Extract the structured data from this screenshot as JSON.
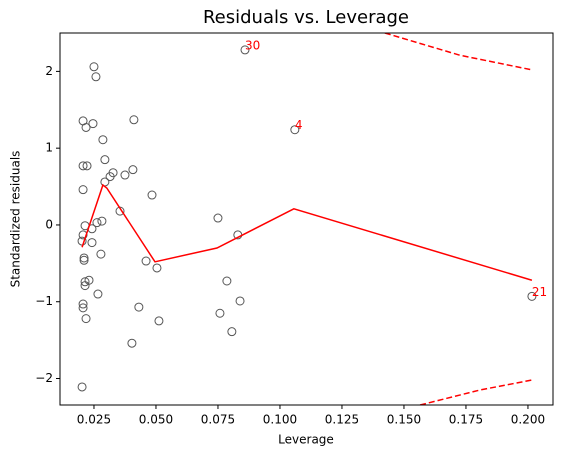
{
  "chart_data": {
    "type": "scatter",
    "title": "Residuals vs. Leverage",
    "xlabel": "Leverage",
    "ylabel": "Standardized residuals",
    "color": "#555555",
    "x": [
      0.025,
      0.0258,
      0.0859,
      0.0206,
      0.0246,
      0.0218,
      0.0411,
      0.0286,
      0.106,
      0.0206,
      0.0222,
      0.0294,
      0.0327,
      0.0315,
      0.0375,
      0.0407,
      0.0294,
      0.0206,
      0.0484,
      0.0355,
      0.075,
      0.0282,
      0.0262,
      0.0214,
      0.0242,
      0.083,
      0.0206,
      0.0202,
      0.0242,
      0.0278,
      0.021,
      0.021,
      0.046,
      0.0504,
      0.023,
      0.0214,
      0.0786,
      0.0214,
      0.0266,
      0.2016,
      0.0839,
      0.0206,
      0.0206,
      0.0431,
      0.0758,
      0.0512,
      0.0218,
      0.0806,
      0.0403,
      0.0202
    ],
    "values": [
      2.06,
      1.93,
      2.28,
      1.355,
      1.32,
      1.27,
      1.37,
      1.11,
      1.24,
      0.77,
      0.77,
      0.85,
      0.68,
      0.63,
      0.65,
      0.72,
      0.56,
      0.46,
      0.39,
      0.18,
      0.09,
      0.05,
      0.03,
      -0.01,
      -0.05,
      -0.13,
      -0.13,
      -0.21,
      -0.23,
      -0.38,
      -0.43,
      -0.46,
      -0.47,
      -0.56,
      -0.72,
      -0.74,
      -0.73,
      -0.79,
      -0.9,
      -0.93,
      -0.99,
      -1.03,
      -1.08,
      -1.07,
      -1.15,
      -1.25,
      -1.22,
      -1.39,
      -1.54,
      -2.11
    ],
    "lines": [
      {
        "color": "#ff0000",
        "dashed": false,
        "x": [
          0.0202,
          0.0286,
          0.0302,
          0.0496,
          0.0746,
          0.1056,
          0.2016
        ],
        "y": [
          -0.29,
          0.52,
          0.48,
          -0.48,
          -0.3,
          0.21,
          -0.72
        ]
      },
      {
        "color": "#ff0000",
        "dashed": true,
        "x": [
          0.1423,
          0.1726,
          0.2016
        ],
        "y": [
          2.5,
          2.21,
          2.02
        ]
      },
      {
        "color": "#ff0000",
        "dashed": true,
        "x": [
          0.1565,
          0.1806,
          0.2016
        ],
        "y": [
          -2.345,
          -2.15,
          -2.02
        ]
      }
    ],
    "annotations": [
      {
        "text": "30",
        "x": 0.0859,
        "y": 2.28,
        "color": "#ff0000"
      },
      {
        "text": "4",
        "x": 0.106,
        "y": 1.24,
        "color": "#ff0000"
      },
      {
        "text": "21",
        "x": 0.2016,
        "y": -0.93,
        "color": "#ff0000"
      }
    ],
    "xlim": [
      0.0113,
      0.2101
    ],
    "ylim": [
      -2.345,
      2.5
    ],
    "xticks": [
      0.025,
      {
        "value": 0.05,
        "label": "0.050"
      },
      0.075,
      {
        "value": 0.1,
        "label": "0.100"
      },
      0.125,
      {
        "value": 0.15,
        "label": "0.150"
      },
      0.175,
      {
        "value": 0.2,
        "label": "0.200"
      }
    ],
    "yticks": [
      {
        "value": -2,
        "label": "−2"
      },
      {
        "value": -1,
        "label": "−1"
      },
      0,
      1,
      2
    ]
  }
}
